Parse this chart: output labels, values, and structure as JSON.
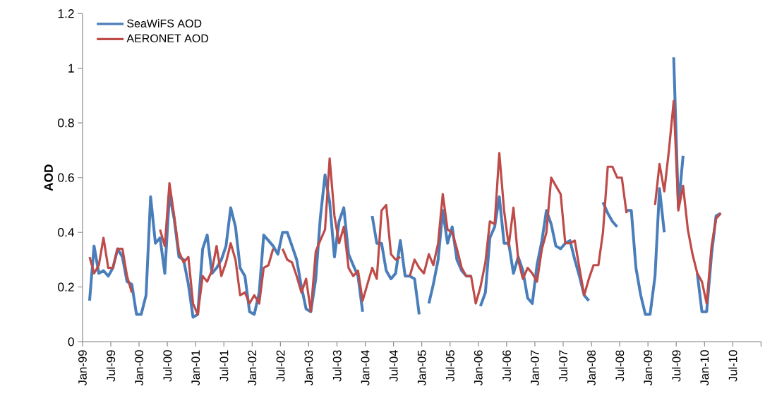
{
  "chart_data": {
    "type": "line",
    "ylabel": "AOD",
    "x": [
      "1999-02-15",
      "1999-03-15",
      "1999-04-15",
      "1999-05-15",
      "1999-06-15",
      "1999-07-15",
      "1999-08-15",
      "1999-09-15",
      "1999-10-15",
      "1999-11-15",
      "1999-12-15",
      "2000-01-15",
      "2000-02-15",
      "2000-03-15",
      "2000-04-15",
      "2000-05-15",
      "2000-06-15",
      "2000-07-15",
      "2000-08-15",
      "2000-09-15",
      "2000-10-15",
      "2000-11-15",
      "2000-12-15",
      "2001-01-15",
      "2001-02-15",
      "2001-03-15",
      "2001-04-15",
      "2001-05-15",
      "2001-06-15",
      "2001-07-15",
      "2001-08-15",
      "2001-09-15",
      "2001-10-15",
      "2001-11-15",
      "2001-12-15",
      "2002-01-15",
      "2002-02-15",
      "2002-03-15",
      "2002-04-15",
      "2002-05-15",
      "2002-06-15",
      "2002-07-15",
      "2002-08-15",
      "2002-09-15",
      "2002-10-15",
      "2002-11-15",
      "2002-12-15",
      "2003-01-15",
      "2003-02-15",
      "2003-03-15",
      "2003-04-15",
      "2003-05-15",
      "2003-06-15",
      "2003-07-15",
      "2003-08-15",
      "2003-09-15",
      "2003-10-15",
      "2003-11-15",
      "2003-12-15",
      "2004-01-15",
      "2004-02-15",
      "2004-03-15",
      "2004-04-15",
      "2004-05-15",
      "2004-06-15",
      "2004-07-15",
      "2004-08-15",
      "2004-09-15",
      "2004-10-15",
      "2004-11-15",
      "2004-12-15",
      "2005-01-15",
      "2005-02-15",
      "2005-03-15",
      "2005-04-15",
      "2005-05-15",
      "2005-06-15",
      "2005-07-15",
      "2005-08-15",
      "2005-09-15",
      "2005-10-15",
      "2005-11-15",
      "2005-12-15",
      "2006-01-15",
      "2006-02-15",
      "2006-03-15",
      "2006-04-15",
      "2006-05-15",
      "2006-06-15",
      "2006-07-15",
      "2006-08-15",
      "2006-09-15",
      "2006-10-15",
      "2006-11-15",
      "2006-12-15",
      "2007-01-15",
      "2007-02-15",
      "2007-03-15",
      "2007-04-15",
      "2007-05-15",
      "2007-06-15",
      "2007-07-15",
      "2007-08-15",
      "2007-09-15",
      "2007-10-15",
      "2007-11-15",
      "2007-12-15",
      "2008-01-15",
      "2008-02-15",
      "2008-03-15",
      "2008-04-15",
      "2008-05-15",
      "2008-06-15",
      "2008-07-15",
      "2008-08-15",
      "2008-09-15",
      "2008-10-15",
      "2008-11-15",
      "2008-12-15",
      "2009-01-15",
      "2009-02-15",
      "2009-03-15",
      "2009-04-15",
      "2009-05-15",
      "2009-06-15",
      "2009-07-15",
      "2009-08-15",
      "2009-09-15",
      "2009-10-15",
      "2009-11-15",
      "2009-12-15",
      "2010-01-15",
      "2010-02-15",
      "2010-03-15",
      "2010-04-15"
    ],
    "series": [
      {
        "name": "SeaWiFS AOD",
        "color": "#4a7ebb",
        "values": [
          0.15,
          0.35,
          0.25,
          0.26,
          0.24,
          0.27,
          0.34,
          0.31,
          0.22,
          0.21,
          0.1,
          0.1,
          0.17,
          0.53,
          0.36,
          0.38,
          0.25,
          0.54,
          0.45,
          0.31,
          0.3,
          0.21,
          0.09,
          0.1,
          0.34,
          0.39,
          0.25,
          0.27,
          0.3,
          0.35,
          0.49,
          0.42,
          0.27,
          0.24,
          0.11,
          0.1,
          0.18,
          0.39,
          0.37,
          0.35,
          0.32,
          0.4,
          0.4,
          0.35,
          0.3,
          0.2,
          0.12,
          0.11,
          0.23,
          0.45,
          0.61,
          0.51,
          0.31,
          0.44,
          0.49,
          0.32,
          0.28,
          0.24,
          0.11,
          null,
          0.46,
          0.36,
          0.36,
          0.26,
          0.23,
          0.25,
          0.37,
          0.24,
          0.24,
          0.23,
          0.1,
          null,
          0.14,
          0.21,
          0.3,
          0.48,
          0.36,
          0.42,
          0.3,
          0.26,
          0.24,
          0.24,
          null,
          0.13,
          0.18,
          0.38,
          0.42,
          0.53,
          0.36,
          0.36,
          0.25,
          0.31,
          0.26,
          0.16,
          0.14,
          0.28,
          0.37,
          0.48,
          0.43,
          0.35,
          0.34,
          0.36,
          0.37,
          0.3,
          0.24,
          0.17,
          0.15,
          null,
          null,
          0.51,
          0.47,
          0.44,
          0.42,
          null,
          0.48,
          0.48,
          0.27,
          0.17,
          0.1,
          0.1,
          0.24,
          0.56,
          0.4,
          null,
          1.04,
          0.49,
          0.68,
          null,
          null,
          0.25,
          0.11,
          0.11,
          0.32,
          0.46,
          0.47
        ]
      },
      {
        "name": "AERONET AOD",
        "color": "#be4b48",
        "values": [
          0.31,
          0.25,
          0.28,
          0.38,
          0.27,
          0.27,
          0.34,
          0.34,
          0.24,
          0.18,
          null,
          null,
          null,
          null,
          null,
          0.41,
          0.35,
          0.58,
          0.46,
          0.33,
          0.29,
          0.31,
          0.14,
          0.1,
          0.24,
          0.22,
          0.26,
          0.35,
          0.24,
          0.29,
          0.36,
          0.3,
          0.17,
          0.18,
          0.14,
          0.17,
          0.14,
          0.27,
          0.28,
          0.34,
          null,
          0.34,
          0.3,
          0.29,
          0.24,
          0.18,
          0.23,
          0.11,
          0.33,
          0.37,
          0.41,
          0.67,
          0.46,
          0.36,
          0.42,
          0.27,
          0.24,
          0.26,
          0.15,
          0.21,
          0.27,
          0.23,
          0.48,
          0.5,
          0.32,
          0.3,
          0.31,
          null,
          0.24,
          0.3,
          0.27,
          0.25,
          0.32,
          0.28,
          0.36,
          0.54,
          0.41,
          0.4,
          0.34,
          0.27,
          0.24,
          0.24,
          0.14,
          0.2,
          0.29,
          0.44,
          0.43,
          0.69,
          0.48,
          0.35,
          0.49,
          0.3,
          0.23,
          0.27,
          0.25,
          0.22,
          0.34,
          0.4,
          0.6,
          0.57,
          0.54,
          0.36,
          0.36,
          0.37,
          0.27,
          0.17,
          0.23,
          0.28,
          0.28,
          0.4,
          0.64,
          0.64,
          0.6,
          0.6,
          0.47,
          null,
          null,
          null,
          null,
          null,
          0.5,
          0.65,
          0.55,
          0.7,
          0.88,
          0.48,
          0.57,
          0.41,
          0.32,
          0.25,
          0.22,
          0.14,
          0.35,
          0.45,
          0.47
        ]
      }
    ],
    "xlim": [
      "1999-01-01",
      "2011-01-01"
    ],
    "xticks": [
      {
        "value": "1999-01-01",
        "label": "Jan-99"
      },
      {
        "value": "1999-07-01",
        "label": "Jul-99"
      },
      {
        "value": "2000-01-01",
        "label": "Jan-00"
      },
      {
        "value": "2000-07-01",
        "label": "Jul-00"
      },
      {
        "value": "2001-01-01",
        "label": "Jan-01"
      },
      {
        "value": "2001-07-01",
        "label": "Jul-01"
      },
      {
        "value": "2002-01-01",
        "label": "Jan-02"
      },
      {
        "value": "2002-07-01",
        "label": "Jul-02"
      },
      {
        "value": "2003-01-01",
        "label": "Jan-03"
      },
      {
        "value": "2003-07-01",
        "label": "Jul-03"
      },
      {
        "value": "2004-01-01",
        "label": "Jan-04"
      },
      {
        "value": "2004-07-01",
        "label": "Jul-04"
      },
      {
        "value": "2005-01-01",
        "label": "Jan-05"
      },
      {
        "value": "2005-07-01",
        "label": "Jul-05"
      },
      {
        "value": "2006-01-01",
        "label": "Jan-06"
      },
      {
        "value": "2006-07-01",
        "label": "Jul-06"
      },
      {
        "value": "2007-01-01",
        "label": "Jan-07"
      },
      {
        "value": "2007-07-01",
        "label": "Jul-07"
      },
      {
        "value": "2008-01-01",
        "label": "Jan-08"
      },
      {
        "value": "2008-07-01",
        "label": "Jul-08"
      },
      {
        "value": "2009-01-01",
        "label": "Jan-09"
      },
      {
        "value": "2009-07-01",
        "label": "Jul-09"
      },
      {
        "value": "2010-01-01",
        "label": "Jan-10"
      },
      {
        "value": "2010-07-01",
        "label": "Jul-10"
      },
      {
        "value": "2011-01-01",
        "label": null
      }
    ],
    "ylim": [
      0,
      1.2
    ],
    "yticks": [
      0,
      0.2,
      0.4,
      0.6,
      0.8,
      1,
      1.2
    ],
    "legend": "top left"
  }
}
